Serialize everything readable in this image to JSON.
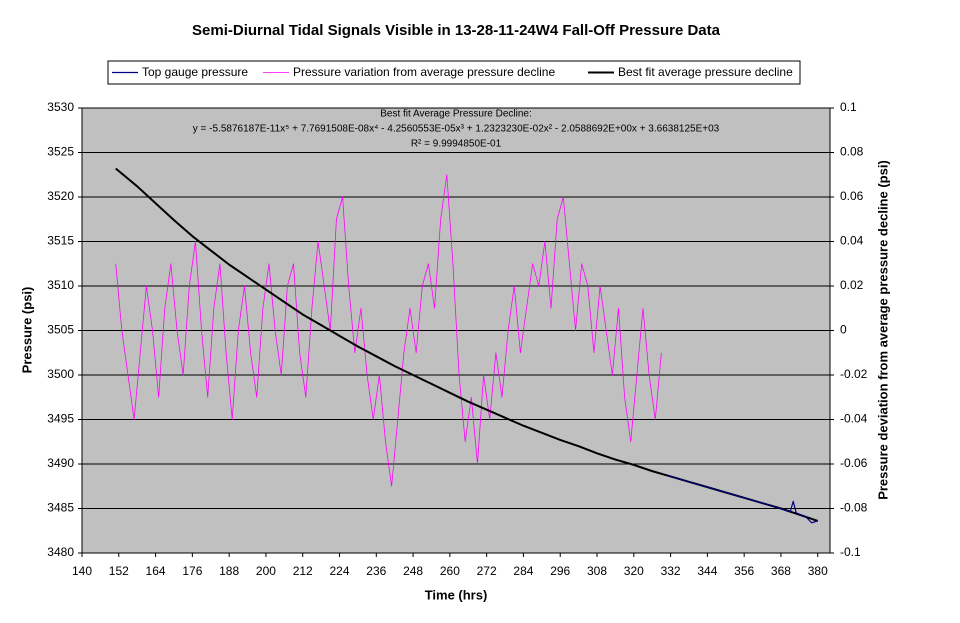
{
  "chart_data": {
    "type": "line",
    "title": "Semi-Diurnal Tidal Signals Visible in 13-28-11-24W4 Fall-Off Pressure Data",
    "x_label": "Time (hrs)",
    "y_label": "Pressure (psi)",
    "y2_label": "Pressure deviation from average pressure decline (psi)",
    "annotations": [
      "Best fit Average Pressure Decline:",
      "y = -5.5876187E-11x⁵ + 7.7691508E-08x⁴ - 4.2560553E-05x³ + 1.2323230E-02x² - 2.0588692E+00x + 3.6638125E+03",
      "R² = 9.9994850E-01"
    ],
    "xlim": [
      140,
      384
    ],
    "xticks": [
      140,
      152,
      164,
      176,
      188,
      200,
      212,
      224,
      236,
      248,
      260,
      272,
      284,
      296,
      308,
      320,
      332,
      344,
      356,
      368,
      380
    ],
    "ylim": [
      3480,
      3530
    ],
    "yticks": [
      3480,
      3485,
      3490,
      3495,
      3500,
      3505,
      3510,
      3515,
      3520,
      3525,
      3530
    ],
    "y2lim": [
      -0.1,
      0.1
    ],
    "y2ticks": [
      -0.1,
      -0.08,
      -0.06,
      -0.04,
      -0.02,
      0,
      0.02,
      0.04,
      0.06,
      0.08,
      0.1
    ],
    "grid": true,
    "legend": "top",
    "series": [
      {
        "name": "Top gauge pressure",
        "color": "#000080",
        "x": [
          331,
          336,
          342,
          348,
          354,
          360,
          366,
          371,
          372,
          373,
          376,
          378,
          380
        ],
        "values": [
          3488.7,
          3488.2,
          3487.6,
          3487,
          3486.4,
          3485.8,
          3485.2,
          3484.6,
          3485.8,
          3484.5,
          3484.1,
          3483.4,
          3483.6
        ]
      },
      {
        "name": "Pressure variation from average pressure decline",
        "color": "#ff00ff",
        "axis": "y2",
        "x": [
          151,
          153,
          155,
          157,
          159,
          161,
          163,
          165,
          167,
          169,
          171,
          173,
          175,
          177,
          179,
          181,
          183,
          185,
          187,
          189,
          191,
          193,
          195,
          197,
          199,
          201,
          203,
          205,
          207,
          209,
          211,
          213,
          215,
          217,
          219,
          221,
          223,
          225,
          227,
          229,
          231,
          233,
          235,
          237,
          239,
          241,
          243,
          245,
          247,
          249,
          251,
          253,
          255,
          257,
          259,
          261,
          263,
          265,
          267,
          269,
          271,
          273,
          275,
          277,
          279,
          281,
          283,
          285,
          287,
          289,
          291,
          293,
          295,
          297,
          299,
          301,
          303,
          305,
          307,
          309,
          311,
          313,
          315,
          317,
          319,
          321,
          323,
          325,
          327,
          329
        ],
        "values": [
          0.03,
          0.0,
          -0.02,
          -0.04,
          -0.01,
          0.02,
          0.0,
          -0.03,
          0.01,
          0.03,
          0.0,
          -0.02,
          0.02,
          0.04,
          0.0,
          -0.03,
          0.01,
          0.03,
          -0.01,
          -0.04,
          0.0,
          0.02,
          -0.01,
          -0.03,
          0.01,
          0.03,
          0.0,
          -0.02,
          0.02,
          0.03,
          -0.01,
          -0.03,
          0.01,
          0.04,
          0.02,
          0.0,
          0.05,
          0.06,
          0.02,
          -0.01,
          0.01,
          -0.02,
          -0.04,
          -0.02,
          -0.05,
          -0.07,
          -0.04,
          -0.01,
          0.01,
          -0.01,
          0.02,
          0.03,
          0.01,
          0.05,
          0.07,
          0.03,
          -0.02,
          -0.05,
          -0.03,
          -0.06,
          -0.02,
          -0.04,
          -0.01,
          -0.03,
          0.0,
          0.02,
          -0.01,
          0.01,
          0.03,
          0.02,
          0.04,
          0.01,
          0.05,
          0.06,
          0.03,
          0.0,
          0.03,
          0.02,
          -0.01,
          0.02,
          0.0,
          -0.02,
          0.01,
          -0.03,
          -0.05,
          -0.02,
          0.01,
          -0.02,
          -0.04,
          -0.01
        ]
      },
      {
        "name": "Best fit average pressure decline",
        "color": "#000000",
        "x": [
          151,
          158,
          164,
          170,
          176,
          182,
          188,
          194,
          200,
          206,
          212,
          218,
          224,
          230,
          236,
          242,
          248,
          254,
          260,
          266,
          272,
          278,
          284,
          290,
          296,
          302,
          308,
          314,
          320,
          326,
          332,
          338,
          344,
          350,
          356,
          362,
          368,
          374,
          380
        ],
        "values": [
          3523.2,
          3521.2,
          3519.3,
          3517.4,
          3515.6,
          3514,
          3512.4,
          3511,
          3509.6,
          3508.2,
          3506.8,
          3505.6,
          3504.4,
          3503.2,
          3502.1,
          3501,
          3500,
          3499,
          3498,
          3497,
          3496.1,
          3495.2,
          3494.3,
          3493.5,
          3492.7,
          3492,
          3491.2,
          3490.5,
          3489.9,
          3489.2,
          3488.6,
          3488,
          3487.4,
          3486.8,
          3486.2,
          3485.6,
          3485,
          3484.3,
          3483.6
        ]
      }
    ]
  }
}
